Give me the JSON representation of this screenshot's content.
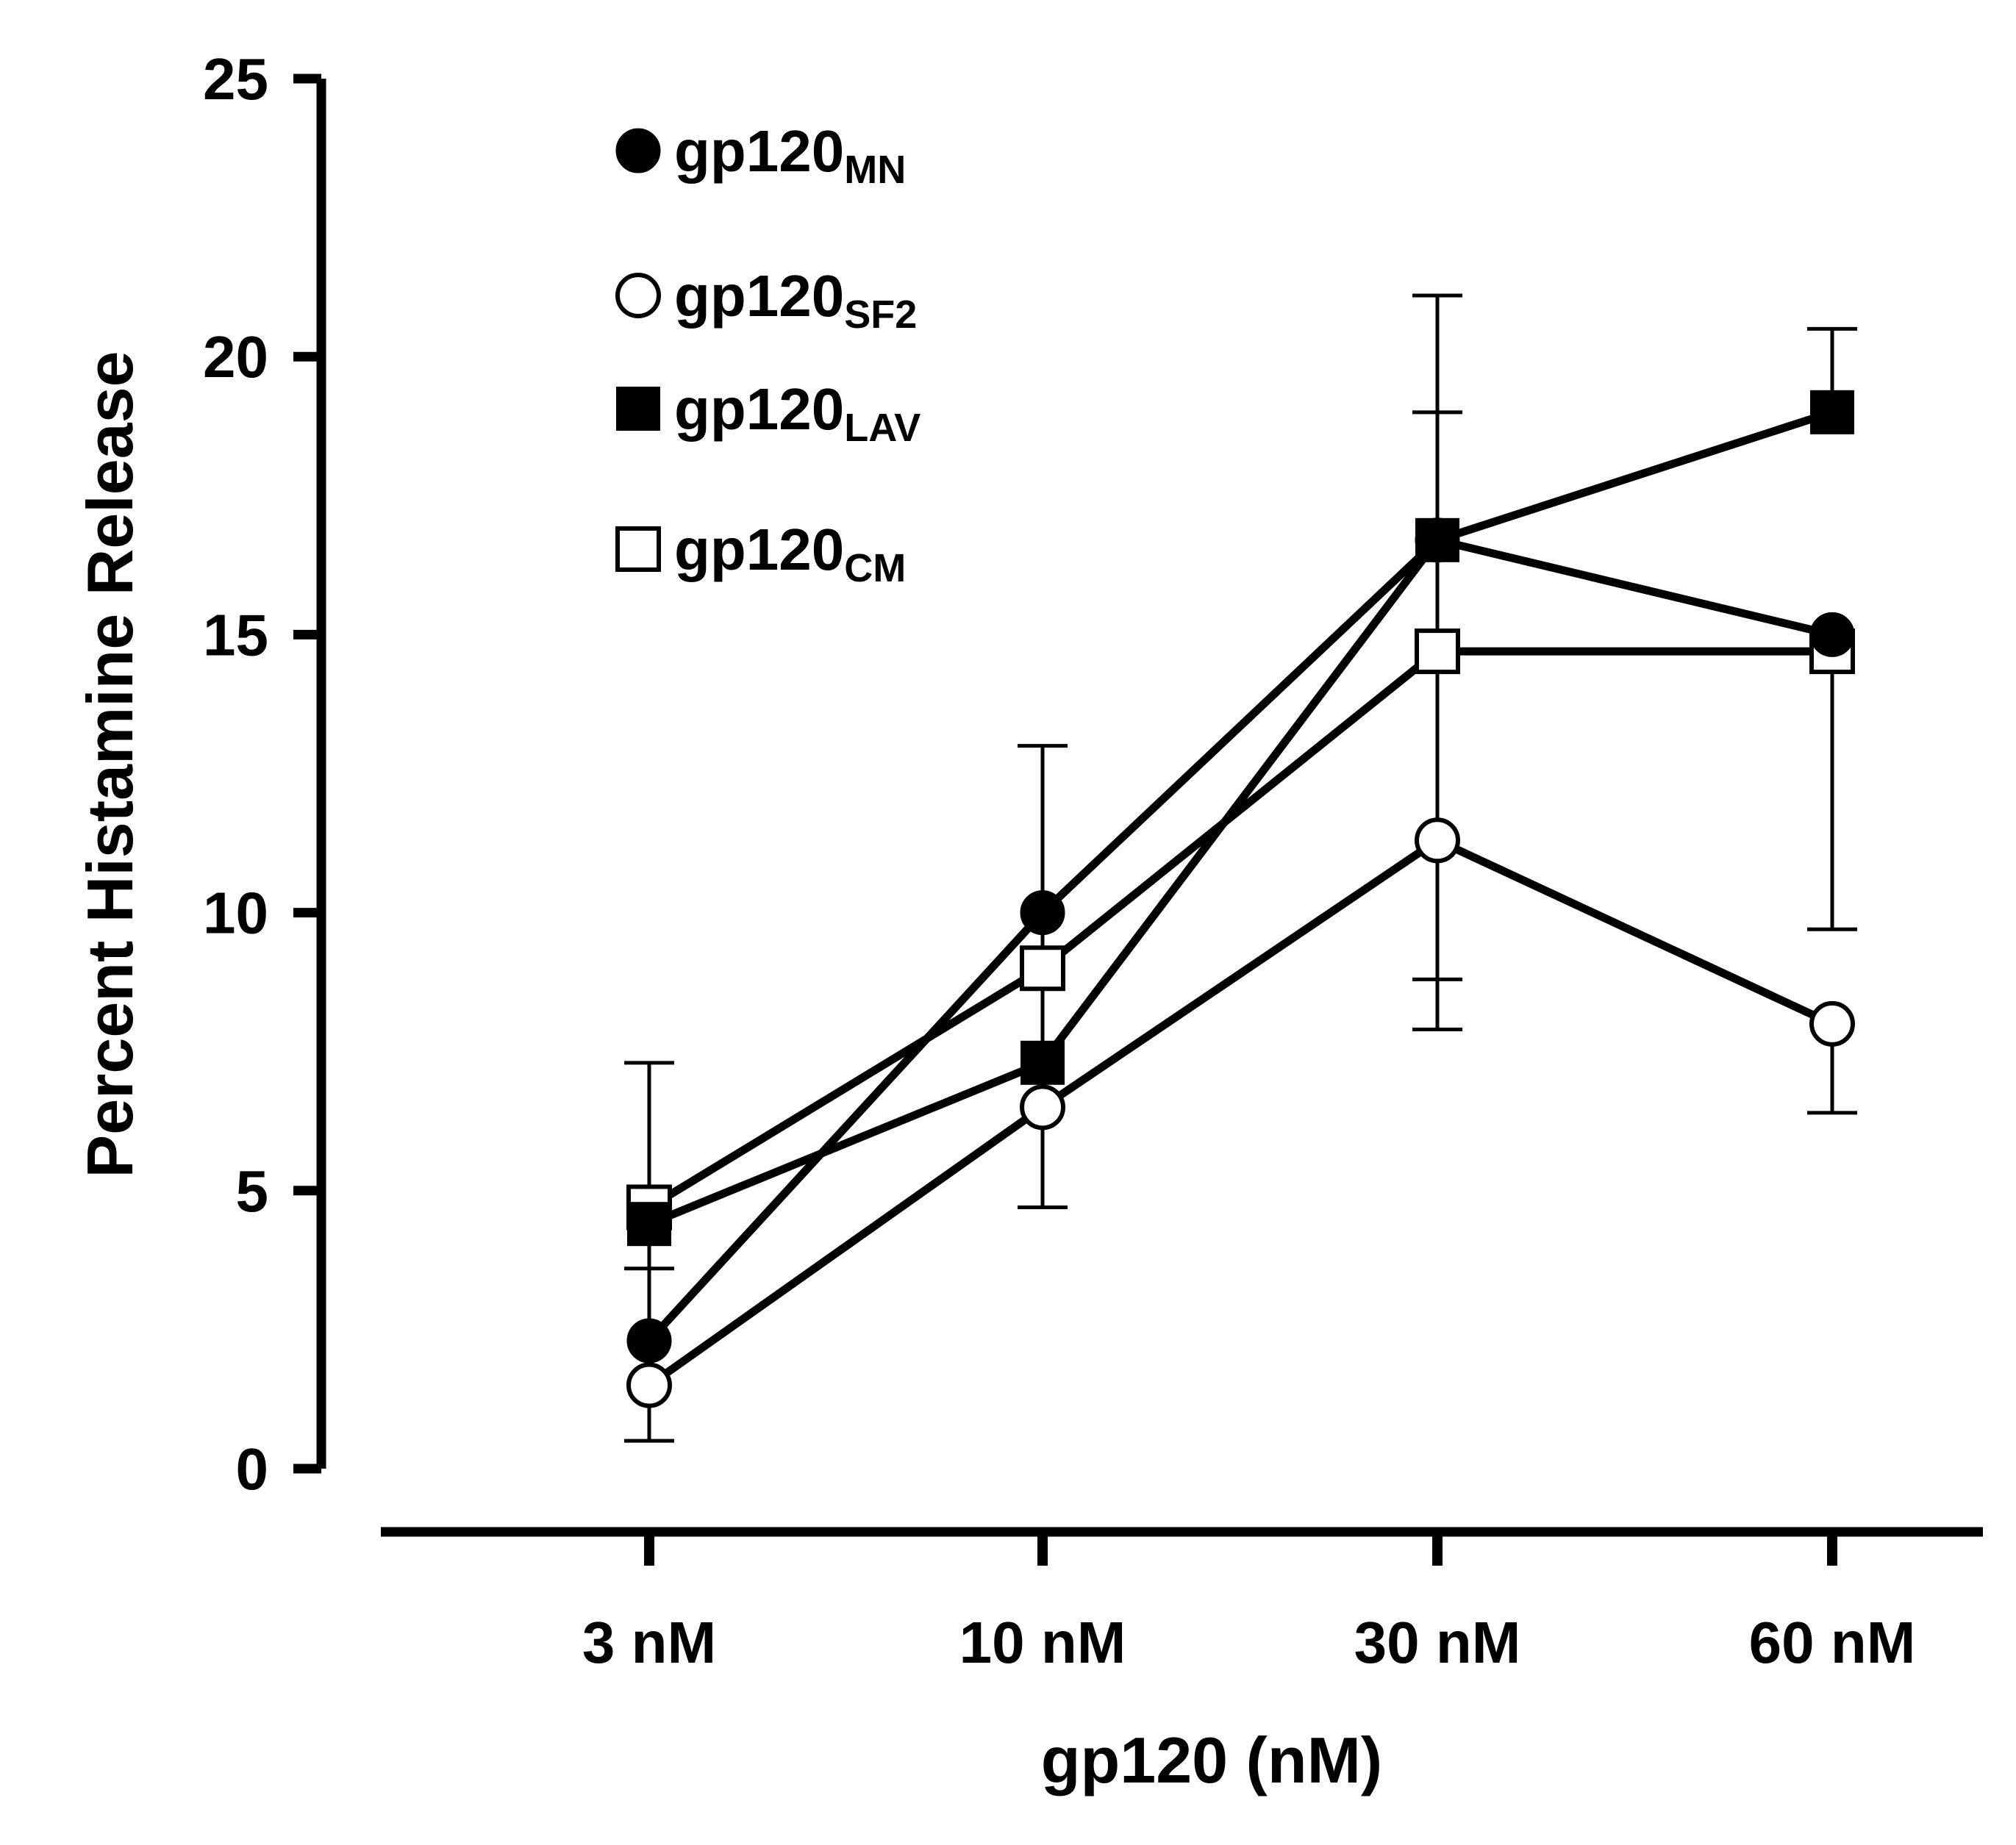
{
  "chart_data": {
    "type": "line",
    "title": "",
    "xlabel": "gp120 (nM)",
    "ylabel": "Percent  Histamine  Release",
    "categories": [
      "3 nM",
      "10 nM",
      "30 nM",
      "60 nM"
    ],
    "ylim": [
      0,
      25
    ],
    "yticks": [
      "0",
      "5",
      "10",
      "15",
      "20",
      "25"
    ],
    "grid": false,
    "legend_position": "top-left",
    "series": [
      {
        "name": "gp120",
        "subscript": "MN",
        "marker": "filled-circle",
        "values": [
          2.3,
          10.0,
          16.7,
          15.0
        ]
      },
      {
        "name": "gp120",
        "subscript": "SF2",
        "marker": "open-circle",
        "values": [
          1.5,
          6.5,
          11.3,
          8.0
        ],
        "error_upper": [
          7.3,
          null,
          null,
          null
        ],
        "error_lower": [
          0.5,
          4.7,
          7.9,
          6.4
        ]
      },
      {
        "name": "gp120",
        "subscript": "LAV",
        "marker": "filled-square",
        "values": [
          4.4,
          7.3,
          16.7,
          19.0
        ],
        "error_upper": [
          null,
          13.0,
          21.1,
          20.5
        ],
        "error_lower": [
          3.6,
          null,
          null,
          null
        ]
      },
      {
        "name": "gp120",
        "subscript": "CM",
        "marker": "open-square",
        "values": [
          4.7,
          9.0,
          14.7,
          14.7
        ],
        "error_upper": [
          null,
          null,
          19.0,
          null
        ],
        "error_lower": [
          null,
          null,
          8.8,
          9.7
        ]
      }
    ]
  }
}
